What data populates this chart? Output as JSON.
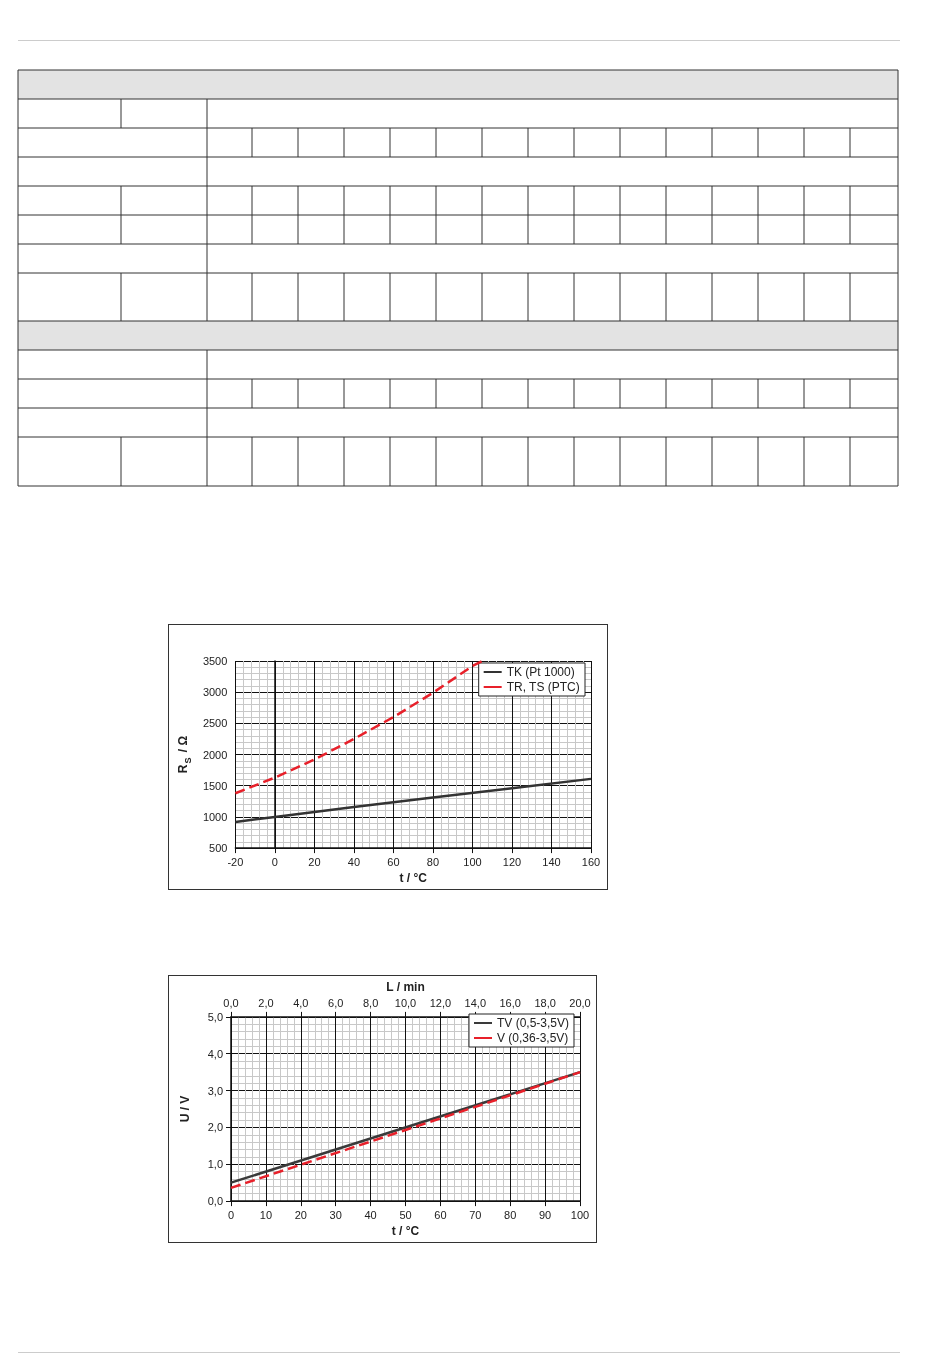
{
  "chart_data": [
    {
      "type": "line",
      "xlabel": "t / °C",
      "ylabel": "R$_{S}$ / Ω",
      "xlim": [
        -20,
        160
      ],
      "xticks": [
        -20,
        0,
        20,
        40,
        60,
        80,
        100,
        120,
        140,
        160
      ],
      "ylim": [
        500,
        3500
      ],
      "yticks": [
        500,
        1000,
        1500,
        2000,
        2500,
        3000,
        3500
      ],
      "grid": true,
      "legend": "top right",
      "marker": "none",
      "series": [
        {
          "name": "TK (Pt 1000)",
          "color": "#333333",
          "line_style": "solid",
          "x": [
            -20,
            0,
            40,
            80,
            120,
            160
          ],
          "values": [
            920,
            1000,
            1160,
            1310,
            1460,
            1610
          ]
        },
        {
          "name": "TR, TS (PTC)",
          "color": "#e8202a",
          "line_style": "dashed",
          "x": [
            -20,
            0,
            20,
            40,
            60,
            80,
            100,
            105
          ],
          "values": [
            1380,
            1630,
            1920,
            2250,
            2600,
            2990,
            3420,
            3500
          ]
        }
      ]
    },
    {
      "type": "line",
      "xlabel": "t / °C",
      "x2label": "L / min",
      "ylabel": "U / V",
      "xlim": [
        0,
        100
      ],
      "xticks": [
        0,
        10,
        20,
        30,
        40,
        50,
        60,
        70,
        80,
        90,
        100
      ],
      "x2lim": [
        0,
        20
      ],
      "x2ticks": [
        {
          "value": 0,
          "label": "0,0"
        },
        {
          "value": 2,
          "label": "2,0"
        },
        {
          "value": 4,
          "label": "4,0"
        },
        {
          "value": 6,
          "label": "6,0"
        },
        {
          "value": 8,
          "label": "8,0"
        },
        {
          "value": 10,
          "label": "10,0"
        },
        {
          "value": 12,
          "label": "12,0"
        },
        {
          "value": 14,
          "label": "14,0"
        },
        {
          "value": 16,
          "label": "16,0"
        },
        {
          "value": 18,
          "label": "18,0"
        },
        {
          "value": 20,
          "label": "20,0"
        }
      ],
      "ylim": [
        0,
        5
      ],
      "yticks": [
        {
          "value": 0,
          "label": "0,0"
        },
        {
          "value": 1,
          "label": "1,0"
        },
        {
          "value": 2,
          "label": "2,0"
        },
        {
          "value": 3,
          "label": "3,0"
        },
        {
          "value": 4,
          "label": "4,0"
        },
        {
          "value": 5,
          "label": "5,0"
        }
      ],
      "grid": true,
      "legend": "top right",
      "marker": "none",
      "series": [
        {
          "name": "TV (0,5-3,5V)",
          "color": "#3a3a3a",
          "line_style": "solid",
          "x": [
            0,
            100
          ],
          "values": [
            0.5,
            3.5
          ]
        },
        {
          "name": "V (0,36-3,5V)",
          "color": "#e8202a",
          "line_style": "dashed",
          "x": [
            0,
            100
          ],
          "values": [
            0.36,
            3.5
          ]
        }
      ]
    }
  ]
}
